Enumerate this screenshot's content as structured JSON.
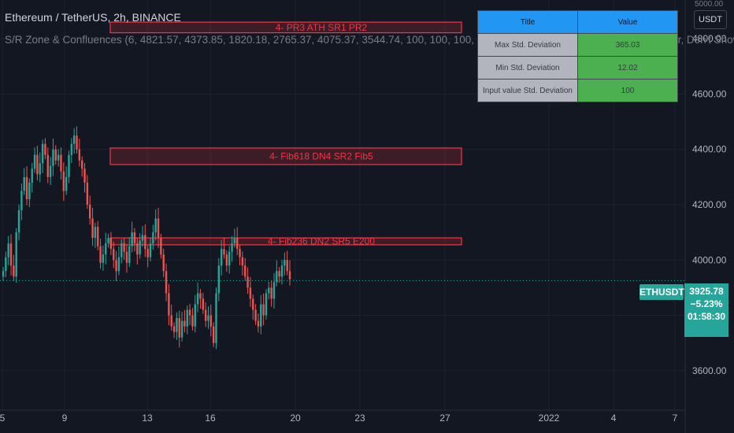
{
  "header": {
    "title": "Ethereum / TetherUS, 2h, BINANCE",
    "indicator": "S/R Zone & Confluences (6, 4821.57, 4373.85, 1820.18, 2765.37, 4075.37, 3544.74, 100, 100, 100, 3, solid (—), Below bars, Left, Tiny, Regular, Don't Show, 1,"
  },
  "axis": {
    "unit": "USDT",
    "unit_top": "5000.00"
  },
  "table": {
    "header": [
      "Title",
      "Value"
    ],
    "rows": [
      {
        "label": "Max Std. Deviation",
        "value": "365.03"
      },
      {
        "label": "Min Std. Deviation",
        "value": "12.02"
      },
      {
        "label": "Input value Std. Deviation",
        "value": "100"
      }
    ]
  },
  "last_price": {
    "symbol": "ETHUSDT",
    "price": "3925.78",
    "change": "−5.23%",
    "countdown": "01:58:30",
    "value": 3925.78
  },
  "colors": {
    "up": "#26a69a",
    "down": "#ef5350",
    "zone": "#f23645",
    "background": "#131722"
  },
  "chart_data": {
    "type": "candlestick",
    "y_ticks": [
      3600,
      3800,
      4000,
      4200,
      4400,
      4600,
      4800
    ],
    "y_tick_labels": [
      "3600.00",
      "3800.00",
      "4000.00",
      "4200.00",
      "4400.00",
      "4600.00",
      "4800.00"
    ],
    "ylim": [
      3460,
      4940
    ],
    "x_tick_labels": [
      "5",
      "9",
      "13",
      "16",
      "20",
      "23",
      "27",
      "2022",
      "4",
      "7"
    ],
    "zones": [
      {
        "label": "4-  PR3 ATH SR1 PR2",
        "low": 4821.57,
        "high": 4860
      },
      {
        "label": "4-  Fib618 DN4 SR2 Fib5",
        "low": 4345,
        "high": 4405
      },
      {
        "label": "4-  Fib236 DN2 SR5 E200",
        "low": 4055,
        "high": 4080
      }
    ],
    "close_series": [
      3960,
      4010,
      4060,
      3980,
      3940,
      4100,
      4180,
      4250,
      4300,
      4220,
      4280,
      4330,
      4380,
      4310,
      4350,
      4420,
      4380,
      4300,
      4340,
      4400,
      4360,
      4380,
      4320,
      4250,
      4300,
      4380,
      4420,
      4450,
      4400,
      4360,
      4330,
      4280,
      4200,
      4150,
      4080,
      4120,
      4050,
      3990,
      4020,
      4060,
      4080,
      4040,
      4000,
      3960,
      4010,
      4060,
      4030,
      3990,
      4050,
      4100,
      4060,
      4020,
      4070,
      4090,
      4040,
      4010,
      4060,
      4100,
      4150,
      4080,
      4020,
      3960,
      3880,
      3800,
      3760,
      3740,
      3790,
      3720,
      3780,
      3760,
      3820,
      3800,
      3760,
      3840,
      3880,
      3860,
      3820,
      3780,
      3800,
      3760,
      3700,
      3880,
      3980,
      4040,
      4020,
      3980,
      4030,
      4060,
      4080,
      4040,
      4010,
      3980,
      3940,
      3900,
      3860,
      3820,
      3780,
      3760,
      3840,
      3800,
      3880,
      3900,
      3860,
      3920,
      3960,
      3940,
      3980,
      4000,
      3960,
      3930
    ]
  }
}
